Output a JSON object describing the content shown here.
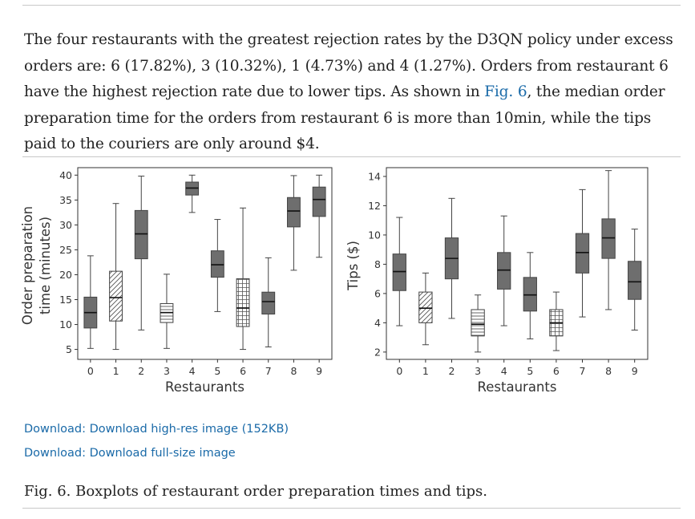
{
  "paragraph": {
    "part1": "The four restaurants with the greatest rejection rates by the D3QN policy under excess orders are: 6 (17.82%), 3 (10.32%), 1 (4.73%) and 4 (1.27%). Orders from restaurant 6 have the highest rejection rate due to lower tips. As shown in ",
    "link": "Fig. 6",
    "part2": ", the median order preparation time for the orders from restaurant 6 is more than 10min, while the tips paid to the couriers are only around $4."
  },
  "downloads": [
    "Download: Download high-res image (152KB)",
    "Download: Download full-size image"
  ],
  "caption": "Fig. 6. Boxplots of restaurant order preparation times and tips.",
  "colors": {
    "box_dark": "#6e6e6e",
    "box_light": "#ececec",
    "link": "#1a6aa8"
  },
  "chart_data": [
    {
      "type": "boxplot",
      "xlabel": "Restaurants",
      "ylabel_lines": [
        "Order preparation",
        "time (minutes)"
      ],
      "categories": [
        "0",
        "1",
        "2",
        "3",
        "4",
        "5",
        "6",
        "7",
        "8",
        "9"
      ],
      "ylim": [
        3,
        41.5
      ],
      "yticks": [
        "5",
        "10",
        "15",
        "20",
        "25",
        "30",
        "35",
        "40"
      ],
      "boxes": [
        {
          "whislo": 5.2,
          "q1": 9.3,
          "med": 12.4,
          "q3": 15.5,
          "whishi": 23.8,
          "fill": "solid"
        },
        {
          "whislo": 5.0,
          "q1": 10.7,
          "med": 15.4,
          "q3": 20.7,
          "whishi": 34.3,
          "fill": "hatch-diag"
        },
        {
          "whislo": 8.9,
          "q1": 23.2,
          "med": 28.2,
          "q3": 32.9,
          "whishi": 39.8,
          "fill": "solid"
        },
        {
          "whislo": 5.2,
          "q1": 10.4,
          "med": 12.4,
          "q3": 14.2,
          "whishi": 20.1,
          "fill": "hatch-horiz"
        },
        {
          "whislo": 32.5,
          "q1": 36.0,
          "med": 37.4,
          "q3": 38.6,
          "whishi": 40.0,
          "fill": "solid"
        },
        {
          "whislo": 12.6,
          "q1": 19.5,
          "med": 22.0,
          "q3": 24.8,
          "whishi": 31.1,
          "fill": "solid"
        },
        {
          "whislo": 5.0,
          "q1": 9.6,
          "med": 13.3,
          "q3": 19.2,
          "whishi": 33.4,
          "fill": "hatch-grid"
        },
        {
          "whislo": 5.5,
          "q1": 12.1,
          "med": 14.6,
          "q3": 16.5,
          "whishi": 23.4,
          "fill": "solid"
        },
        {
          "whislo": 20.9,
          "q1": 29.6,
          "med": 32.8,
          "q3": 35.5,
          "whishi": 39.9,
          "fill": "solid"
        },
        {
          "whislo": 23.5,
          "q1": 31.7,
          "med": 35.1,
          "q3": 37.6,
          "whishi": 40.0,
          "fill": "solid"
        }
      ]
    },
    {
      "type": "boxplot",
      "xlabel": "Restaurants",
      "ylabel_lines": [
        "Tips ($)"
      ],
      "categories": [
        "0",
        "1",
        "2",
        "3",
        "4",
        "5",
        "6",
        "7",
        "8",
        "9"
      ],
      "ylim": [
        1.5,
        14.6
      ],
      "yticks": [
        "2",
        "4",
        "6",
        "8",
        "10",
        "12",
        "14"
      ],
      "boxes": [
        {
          "whislo": 3.8,
          "q1": 6.2,
          "med": 7.5,
          "q3": 8.7,
          "whishi": 11.2,
          "fill": "solid"
        },
        {
          "whislo": 2.5,
          "q1": 4.0,
          "med": 5.0,
          "q3": 6.1,
          "whishi": 7.4,
          "fill": "hatch-diag"
        },
        {
          "whislo": 4.3,
          "q1": 7.0,
          "med": 8.4,
          "q3": 9.8,
          "whishi": 12.5,
          "fill": "solid"
        },
        {
          "whislo": 2.0,
          "q1": 3.1,
          "med": 3.9,
          "q3": 4.9,
          "whishi": 5.9,
          "fill": "hatch-horiz"
        },
        {
          "whislo": 3.8,
          "q1": 6.3,
          "med": 7.6,
          "q3": 8.8,
          "whishi": 11.3,
          "fill": "solid"
        },
        {
          "whislo": 2.9,
          "q1": 4.8,
          "med": 5.9,
          "q3": 7.1,
          "whishi": 8.8,
          "fill": "solid"
        },
        {
          "whislo": 2.1,
          "q1": 3.1,
          "med": 4.0,
          "q3": 4.9,
          "whishi": 6.1,
          "fill": "hatch-grid"
        },
        {
          "whislo": 4.4,
          "q1": 7.4,
          "med": 8.8,
          "q3": 10.1,
          "whishi": 13.1,
          "fill": "solid"
        },
        {
          "whislo": 4.9,
          "q1": 8.4,
          "med": 9.8,
          "q3": 11.1,
          "whishi": 14.4,
          "fill": "solid"
        },
        {
          "whislo": 3.5,
          "q1": 5.6,
          "med": 6.8,
          "q3": 8.2,
          "whishi": 10.4,
          "fill": "solid"
        }
      ]
    }
  ]
}
